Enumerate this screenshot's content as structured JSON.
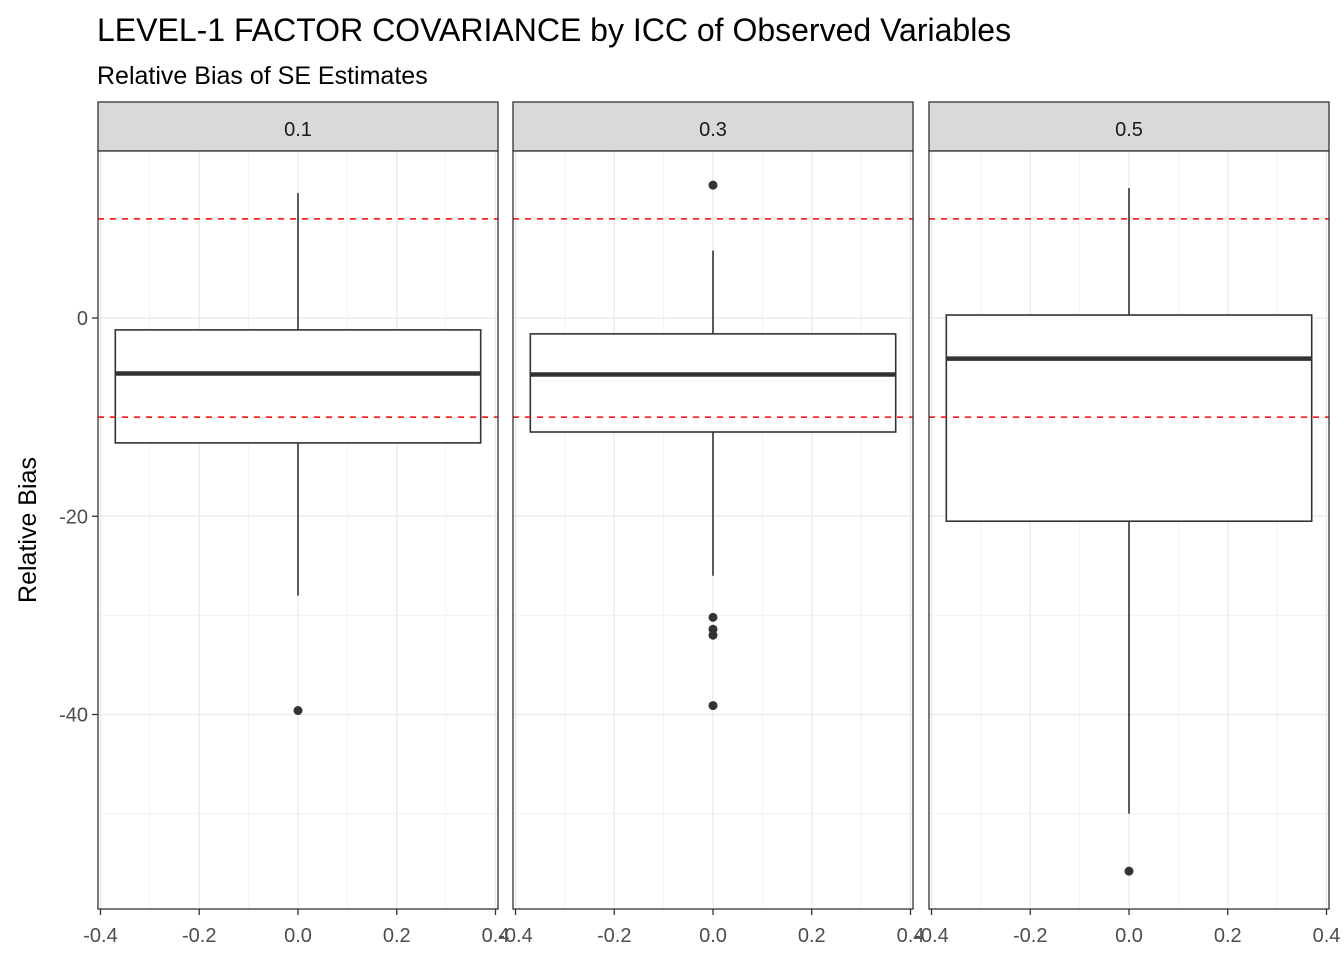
{
  "chart_data": {
    "type": "boxplot",
    "title": "LEVEL-1 FACTOR COVARIANCE by ICC of Observed Variables",
    "subtitle": "Relative Bias of SE Estimates",
    "xlabel": "",
    "ylabel": "Relative Bias",
    "facet_labels": [
      "0.1",
      "0.3",
      "0.5"
    ],
    "x_ticks": [
      "-0.4",
      "-0.2",
      "0.0",
      "0.2",
      "0.4"
    ],
    "y_ticks": [
      "0",
      "-20",
      "-40"
    ],
    "xlim": [
      -0.4,
      0.4
    ],
    "ylim": [
      -59,
      17
    ],
    "reference_lines": [
      10,
      -10
    ],
    "reference_line_color": "#ff0000",
    "grid": true,
    "panels": [
      {
        "facet": "0.1",
        "x": 0.0,
        "box_half_width": 0.37,
        "whisker_low": -28.0,
        "q1": -12.6,
        "median": -5.6,
        "q3": -1.2,
        "whisker_high": 12.6,
        "outliers": [
          -39.6
        ]
      },
      {
        "facet": "0.3",
        "x": 0.0,
        "box_half_width": 0.37,
        "whisker_low": -26.0,
        "q1": -11.5,
        "median": -5.7,
        "q3": -1.6,
        "whisker_high": 6.8,
        "outliers": [
          13.4,
          -30.2,
          -31.4,
          -32.0,
          -39.1
        ]
      },
      {
        "facet": "0.5",
        "x": 0.0,
        "box_half_width": 0.37,
        "whisker_low": -50.0,
        "q1": -20.5,
        "median": -4.1,
        "q3": 0.3,
        "whisker_high": 13.1,
        "outliers": [
          -55.8
        ]
      }
    ]
  }
}
